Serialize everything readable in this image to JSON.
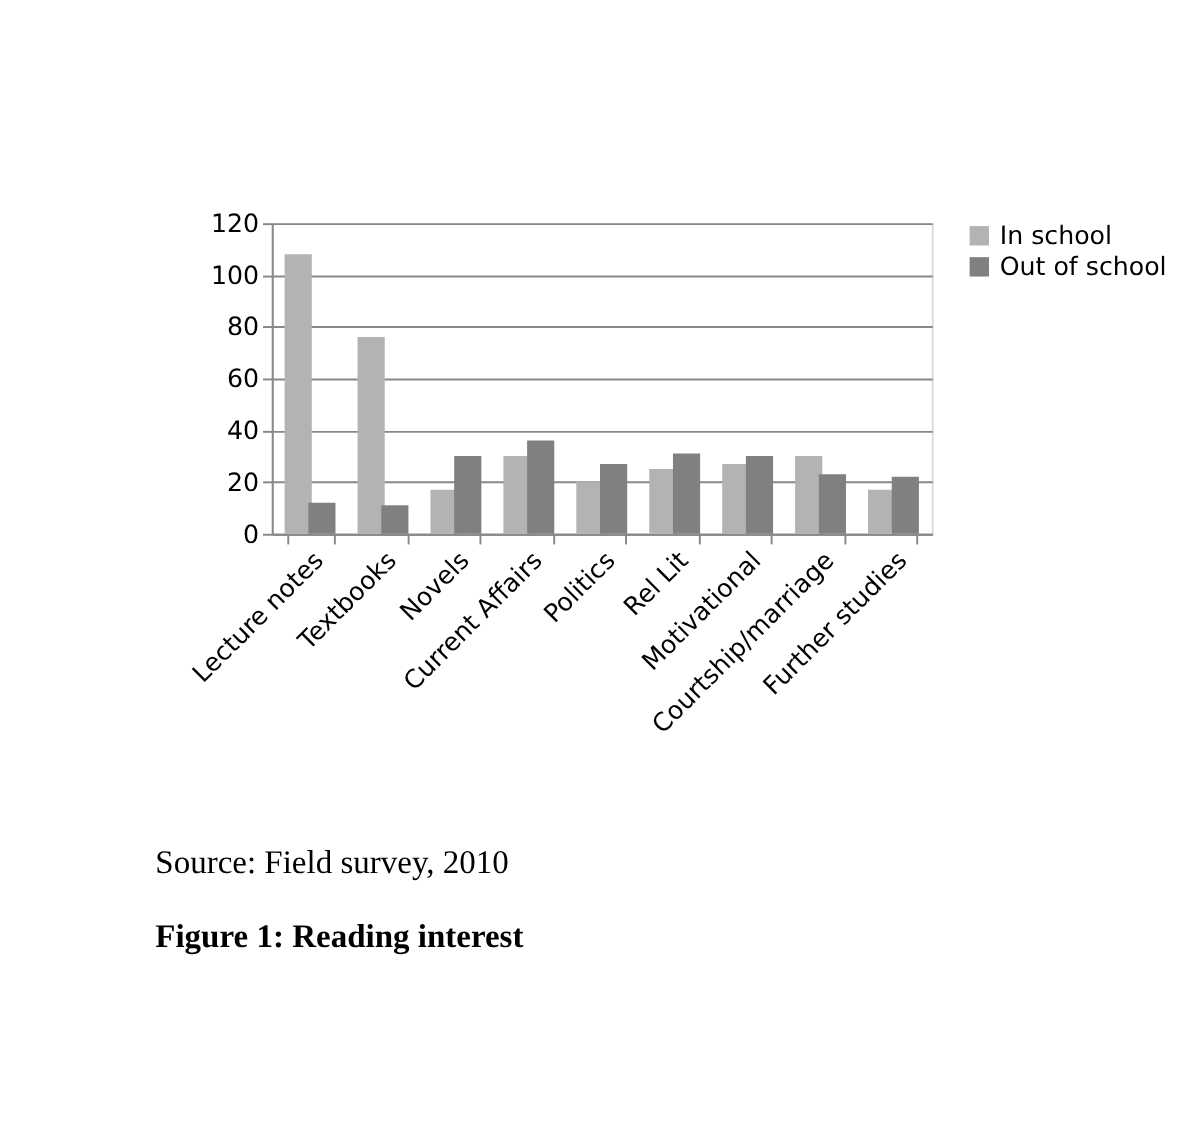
{
  "chart_data": {
    "type": "bar",
    "title": "Figure 1: Reading interest",
    "categories": [
      "Lecture notes",
      "Textbooks",
      "Novels",
      "Current Affairs",
      "Politics",
      "Rel Lit",
      "Motivational",
      "Courtship/marriage",
      "Further studies"
    ],
    "series": [
      {
        "name": "In school",
        "color": "#b3b3b3",
        "values": [
          108,
          76,
          17,
          30,
          20,
          25,
          27,
          30,
          17
        ]
      },
      {
        "name": "Out of school",
        "color": "#808080",
        "values": [
          12,
          11,
          30,
          36,
          27,
          31,
          30,
          23,
          22
        ]
      }
    ],
    "ylim": [
      0,
      120
    ],
    "yticks": [
      0,
      20,
      40,
      60,
      80,
      100,
      120
    ],
    "grid": "y",
    "legend": "right",
    "annotations": [
      "Source: Field survey, 2010"
    ]
  }
}
